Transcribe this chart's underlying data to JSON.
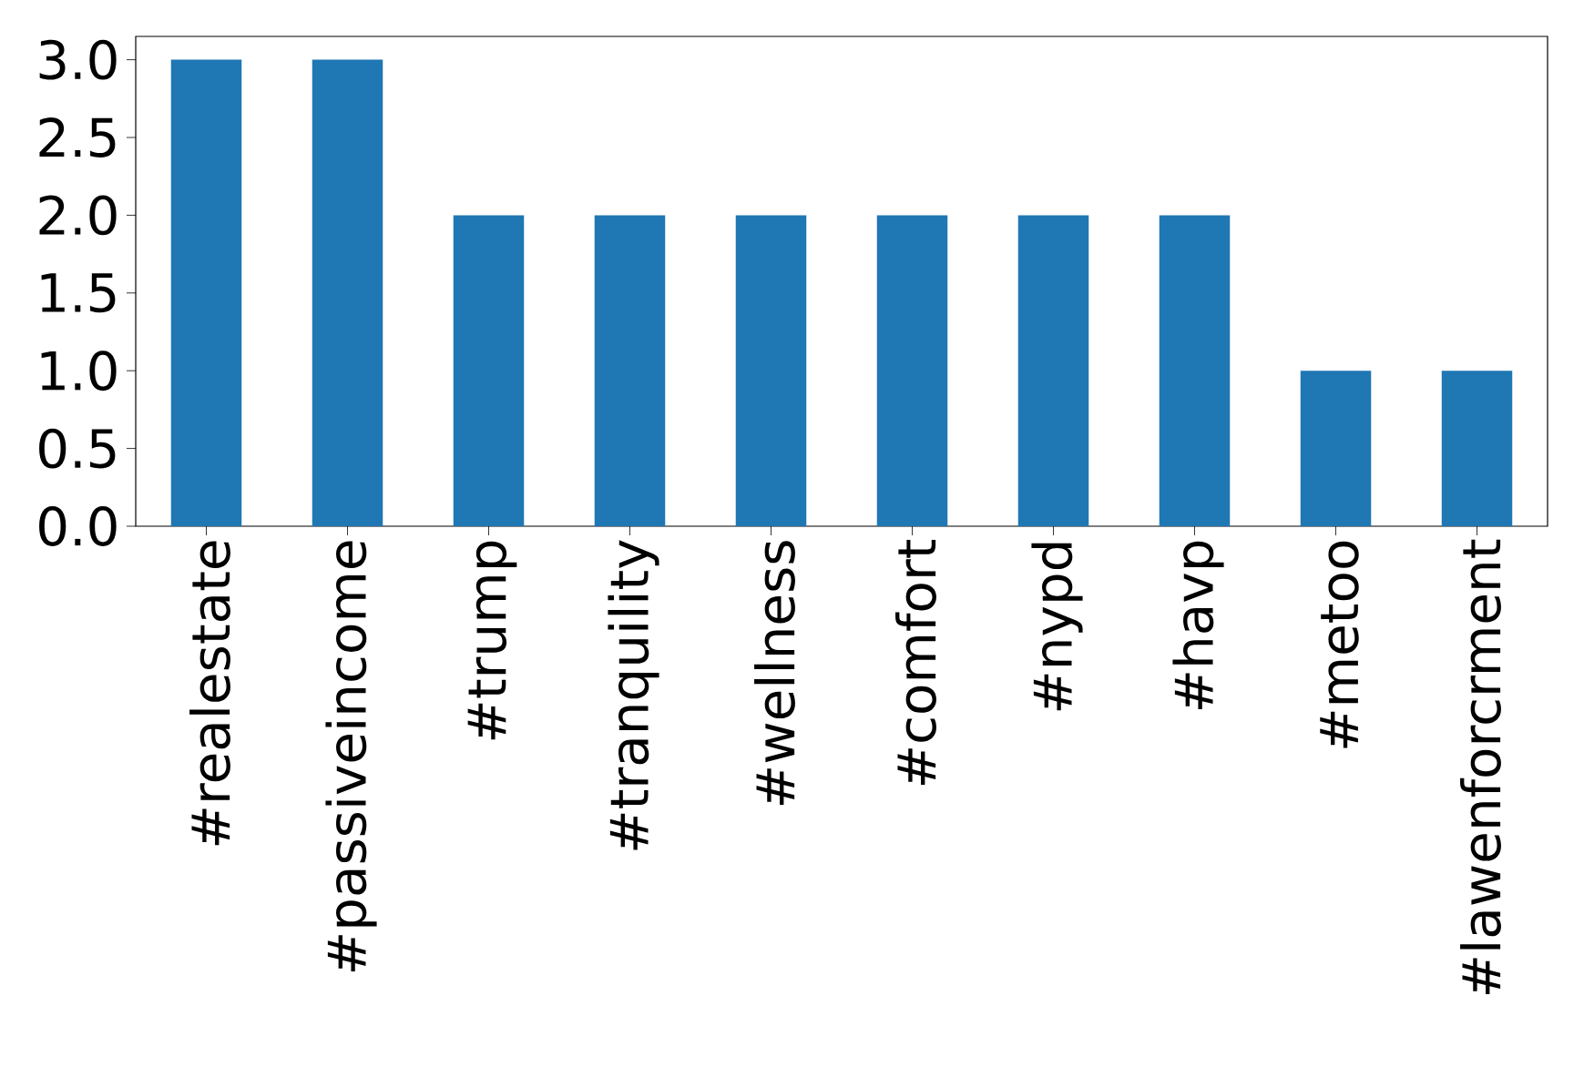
{
  "chart_data": {
    "type": "bar",
    "categories": [
      "#realestate",
      "#passiveincome",
      "#trump",
      "#tranquility",
      "#wellness",
      "#comfort",
      "#nypd",
      "#havp",
      "#metoo",
      "#lawenforcrment"
    ],
    "values": [
      3,
      3,
      2,
      2,
      2,
      2,
      2,
      2,
      1,
      1
    ],
    "color": "#1f77b4",
    "ylim": [
      0,
      3.15
    ],
    "yticks": [
      {
        "value": 0,
        "label": "0.0"
      },
      {
        "value": 0.5,
        "label": "0.5"
      },
      {
        "value": 1,
        "label": "1.0"
      },
      {
        "value": 1.5,
        "label": "1.5"
      },
      {
        "value": 2,
        "label": "2.0"
      },
      {
        "value": 2.5,
        "label": "2.5"
      },
      {
        "value": 3,
        "label": "3.0"
      }
    ],
    "grid": false
  }
}
